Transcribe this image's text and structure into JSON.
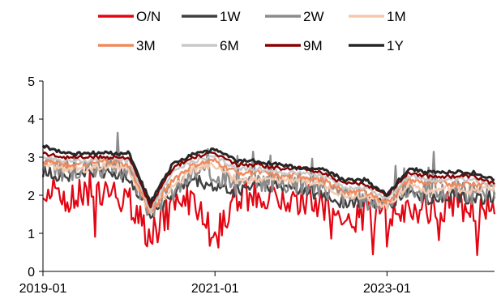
{
  "chart_data": {
    "type": "line",
    "title": "",
    "xlabel": "",
    "ylabel": "",
    "ylim": [
      0,
      5
    ],
    "yticks": [
      "0",
      "1",
      "2",
      "3",
      "4",
      "5"
    ],
    "xlim": [
      "2019-01",
      "2024-04"
    ],
    "xticks": [
      "2019-01",
      "2021-01",
      "2023-01"
    ],
    "grid": false,
    "legend_position": "top",
    "x": [
      "2019-01",
      "2019-04",
      "2019-07",
      "2019-10",
      "2020-01",
      "2020-04",
      "2020-07",
      "2020-10",
      "2021-01",
      "2021-04",
      "2021-07",
      "2021-10",
      "2022-01",
      "2022-04",
      "2022-07",
      "2022-10",
      "2023-01",
      "2023-04",
      "2023-07",
      "2023-10",
      "2024-01",
      "2024-04"
    ],
    "series": [
      {
        "name": "O/N",
        "color": "#e30613",
        "values": [
          2.3,
          1.9,
          2.2,
          2.1,
          1.9,
          0.9,
          1.7,
          1.9,
          1.0,
          1.9,
          2.1,
          1.8,
          1.9,
          1.7,
          1.3,
          1.6,
          1.4,
          1.7,
          1.6,
          1.7,
          1.7,
          1.8
        ]
      },
      {
        "name": "1W",
        "color": "#404040",
        "values": [
          2.6,
          2.5,
          2.6,
          2.6,
          2.5,
          1.5,
          2.0,
          2.4,
          2.2,
          2.1,
          2.3,
          2.2,
          2.2,
          2.0,
          1.8,
          1.8,
          1.7,
          2.1,
          1.9,
          2.0,
          1.9,
          2.0
        ]
      },
      {
        "name": "2W",
        "color": "#8c8c8c",
        "values": [
          2.8,
          2.6,
          2.8,
          2.7,
          2.6,
          1.6,
          2.1,
          2.6,
          2.6,
          2.2,
          2.4,
          2.3,
          2.3,
          2.2,
          2.0,
          1.9,
          1.8,
          2.2,
          2.0,
          2.2,
          2.0,
          2.1
        ]
      },
      {
        "name": "1M",
        "color": "#f5c9ad",
        "values": [
          2.8,
          2.7,
          2.7,
          2.8,
          2.7,
          1.5,
          2.2,
          2.7,
          2.8,
          2.4,
          2.4,
          2.4,
          2.4,
          2.3,
          2.0,
          2.0,
          1.7,
          2.3,
          2.1,
          2.2,
          2.1,
          2.2
        ]
      },
      {
        "name": "3M",
        "color": "#f08a5d",
        "values": [
          2.9,
          2.8,
          2.8,
          2.9,
          2.8,
          1.5,
          2.4,
          2.8,
          2.9,
          2.6,
          2.6,
          2.5,
          2.5,
          2.4,
          2.1,
          2.1,
          1.8,
          2.4,
          2.3,
          2.3,
          2.3,
          2.3
        ]
      },
      {
        "name": "6M",
        "color": "#c8c8c8",
        "values": [
          3.0,
          2.9,
          2.9,
          3.0,
          2.9,
          1.6,
          2.6,
          2.9,
          3.0,
          2.7,
          2.7,
          2.6,
          2.6,
          2.5,
          2.2,
          2.2,
          1.9,
          2.5,
          2.4,
          2.4,
          2.4,
          2.3
        ]
      },
      {
        "name": "9M",
        "color": "#8b0000",
        "values": [
          3.1,
          3.0,
          3.0,
          3.0,
          3.0,
          1.7,
          2.7,
          3.0,
          3.1,
          2.8,
          2.8,
          2.7,
          2.7,
          2.6,
          2.3,
          2.3,
          2.0,
          2.6,
          2.5,
          2.5,
          2.5,
          2.3
        ]
      },
      {
        "name": "1Y",
        "color": "#262626",
        "values": [
          3.3,
          3.1,
          3.1,
          3.1,
          3.1,
          1.8,
          2.8,
          3.1,
          3.2,
          2.9,
          2.9,
          2.8,
          2.7,
          2.7,
          2.4,
          2.4,
          2.0,
          2.7,
          2.6,
          2.6,
          2.6,
          2.4
        ]
      }
    ]
  }
}
